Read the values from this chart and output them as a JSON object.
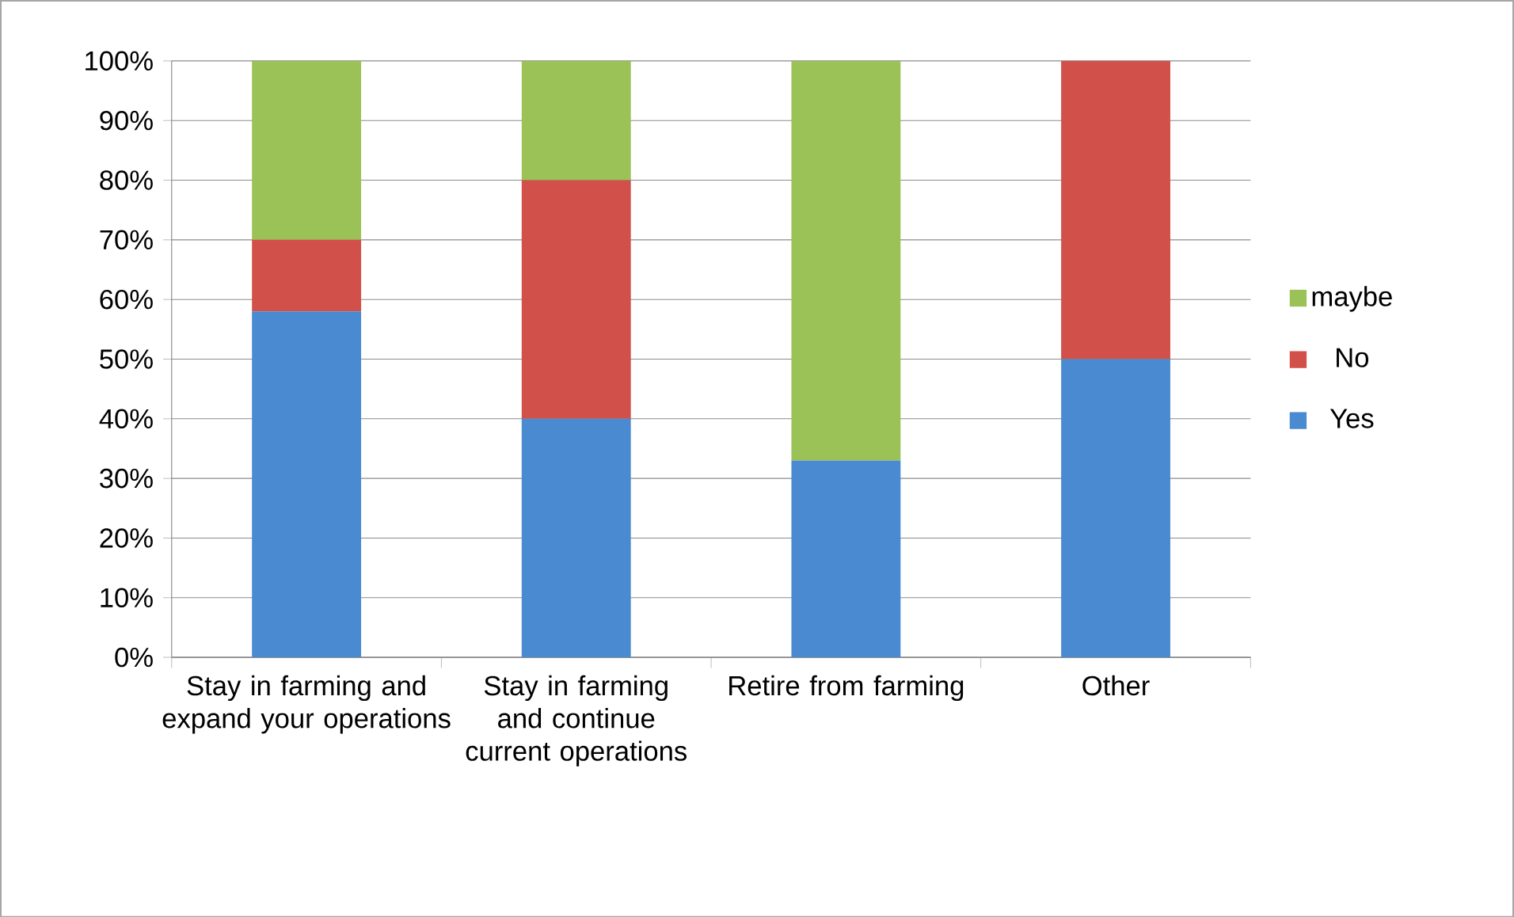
{
  "chart_data": {
    "type": "bar",
    "stacked": true,
    "categories": [
      "Stay in farming and expand your operations",
      "Stay in farming and continue current operations",
      "Retire from farming",
      "Other"
    ],
    "series": [
      {
        "name": "Yes",
        "color": "#4a8ad0",
        "values": [
          58,
          40,
          33,
          50
        ]
      },
      {
        "name": "No",
        "color": "#d2504a",
        "values": [
          12,
          40,
          0,
          50
        ]
      },
      {
        "name": "maybe",
        "color": "#9bc257",
        "values": [
          30,
          20,
          67,
          0
        ]
      }
    ],
    "ylim": [
      0,
      100
    ],
    "yticks": [
      {
        "value": 0,
        "label": "0%"
      },
      {
        "value": 10,
        "label": "10%"
      },
      {
        "value": 20,
        "label": "20%"
      },
      {
        "value": 30,
        "label": "30%"
      },
      {
        "value": 40,
        "label": "40%"
      },
      {
        "value": 50,
        "label": "50%"
      },
      {
        "value": 60,
        "label": "60%"
      },
      {
        "value": 70,
        "label": "70%"
      },
      {
        "value": 80,
        "label": "80%"
      },
      {
        "value": 90,
        "label": "90%"
      },
      {
        "value": 100,
        "label": "100%"
      }
    ],
    "grid": "y",
    "legend": "right"
  }
}
